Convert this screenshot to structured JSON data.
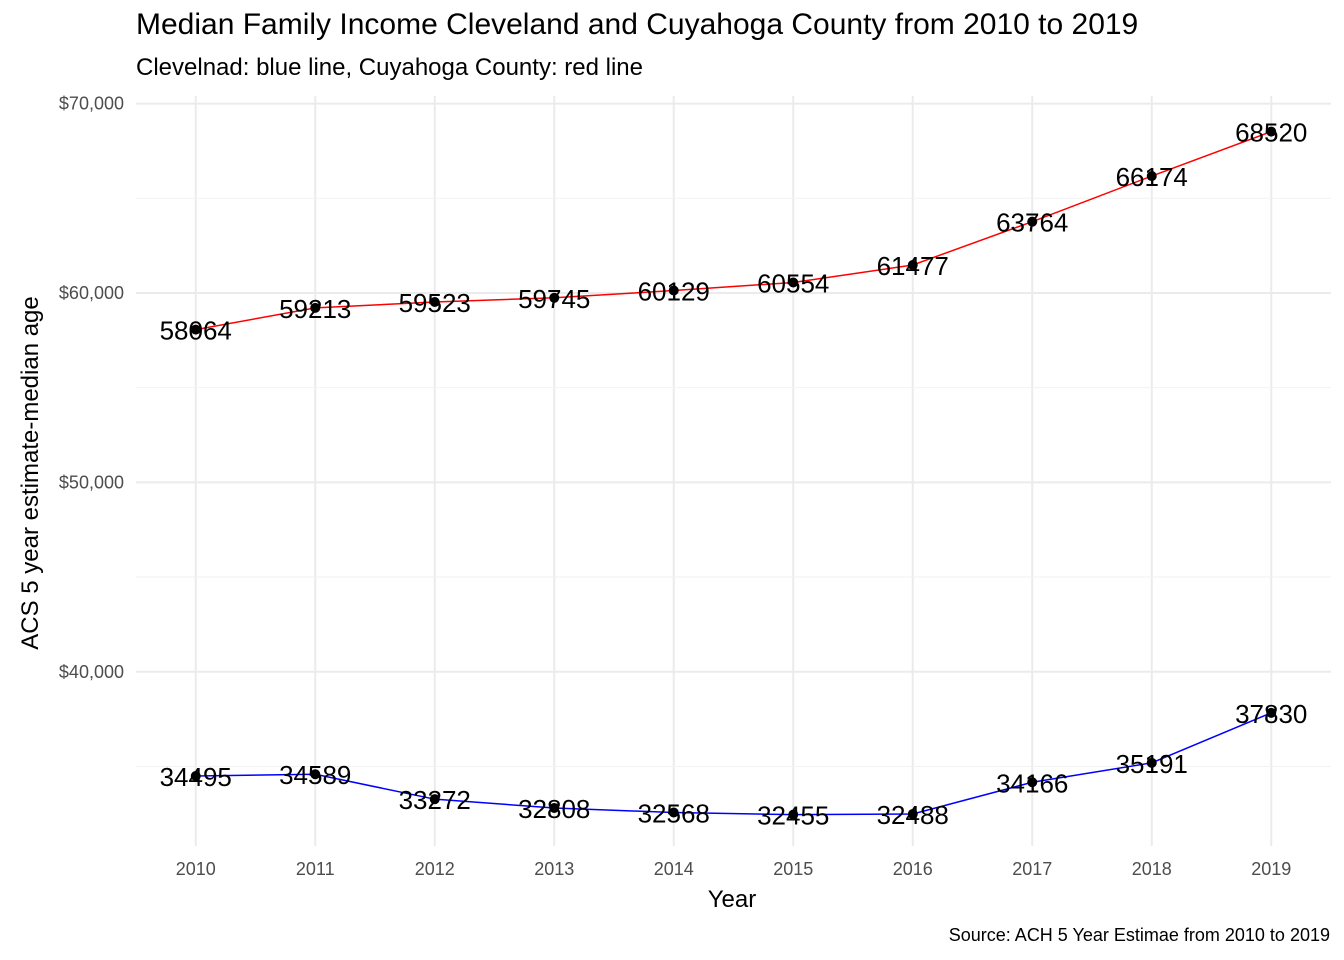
{
  "chart_data": {
    "type": "line",
    "title": "Median Family Income Cleveland and Cuyahoga County from 2010 to 2019",
    "subtitle": "Clevelnad: blue line, Cuyahoga County: red line",
    "caption": "Source: ACH 5 Year Estimae from 2010 to 2019",
    "xlabel": "Year",
    "ylabel": "ACS 5 year estimate-median age",
    "x": [
      2010,
      2011,
      2012,
      2013,
      2014,
      2015,
      2016,
      2017,
      2018,
      2019
    ],
    "x_tick_labels": [
      "2010",
      "2011",
      "2012",
      "2013",
      "2014",
      "2015",
      "2016",
      "2017",
      "2018",
      "2019"
    ],
    "y_ticks": [
      40000,
      50000,
      60000,
      70000
    ],
    "y_tick_labels": [
      "$40,000",
      "$50,000",
      "$60,000",
      "$70,000"
    ],
    "ylim": [
      30800,
      70400
    ],
    "grid": true,
    "series": [
      {
        "color": "#ff0000",
        "values": [
          58064,
          59213,
          59523,
          59745,
          60129,
          60554,
          61477,
          63764,
          66174,
          68520
        ],
        "labels": [
          "58064",
          "59213",
          "59523",
          "59745",
          "60129",
          "60554",
          "61477",
          "63764",
          "66174",
          "68520"
        ]
      },
      {
        "color": "#0000ff",
        "values": [
          34495,
          34589,
          33272,
          32808,
          32568,
          32455,
          32488,
          34166,
          35191,
          37830
        ],
        "labels": [
          "34495",
          "34589",
          "33272",
          "32808",
          "32568",
          "32455",
          "32488",
          "34166",
          "35191",
          "37830"
        ]
      }
    ]
  }
}
